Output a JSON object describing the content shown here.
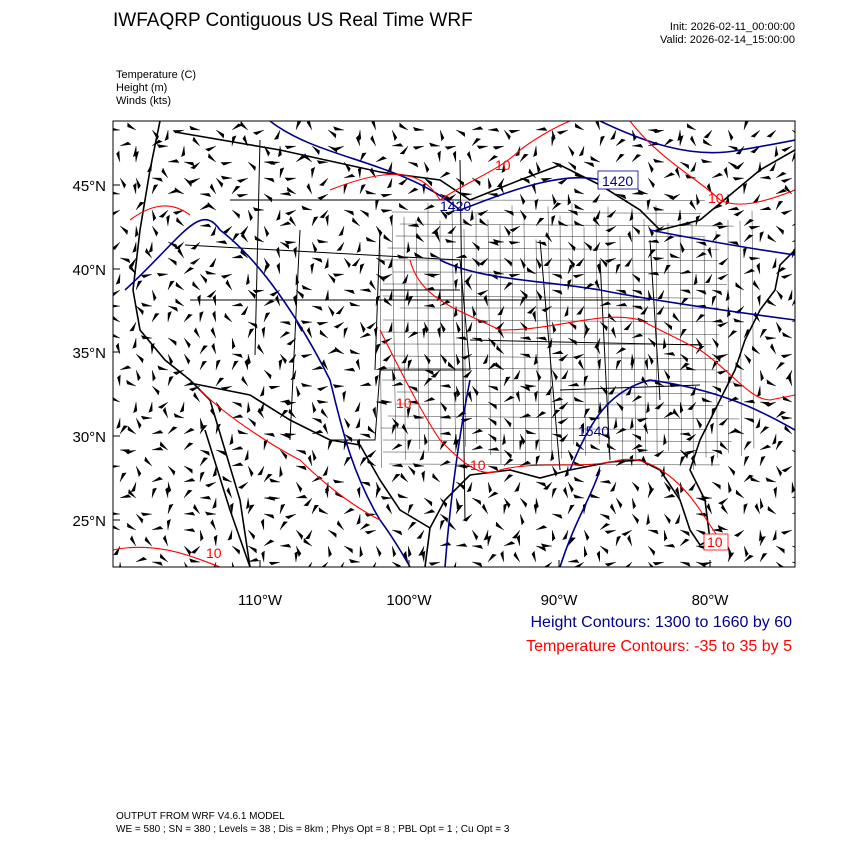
{
  "header": {
    "title": "IWFAQRP Contiguous US Real Time WRF",
    "init": "Init: 2026-02-11_00:00:00",
    "valid": "Valid: 2026-02-14_15:00:00"
  },
  "fields": [
    "Temperature   (C)",
    "Height   (m)",
    "Winds   (kts)"
  ],
  "map": {
    "lat_labels": [
      "45°N",
      "40°N",
      "35°N",
      "30°N",
      "25°N"
    ],
    "lon_labels": [
      "110°W",
      "100°W",
      "90°W",
      "80°W"
    ],
    "height_color": "#00008b",
    "temperature_color": "#ff0000",
    "contour_labels": {
      "height": [
        "1420",
        "1420",
        "1540"
      ],
      "temperature": [
        "10",
        "10",
        "10",
        "10",
        "10",
        "10"
      ]
    }
  },
  "legend": {
    "height": "Height Contours: 1300 to 1660 by 60",
    "temperature": "Temperature Contours: -35 to 35 by 5"
  },
  "footer": {
    "line1": "OUTPUT FROM WRF V4.6.1 MODEL",
    "line2": "WE = 580 ; SN = 380 ; Levels = 38 ; Dis = 8km ; Phys Opt = 8 ; PBL Opt = 1 ; Cu Opt = 3"
  }
}
